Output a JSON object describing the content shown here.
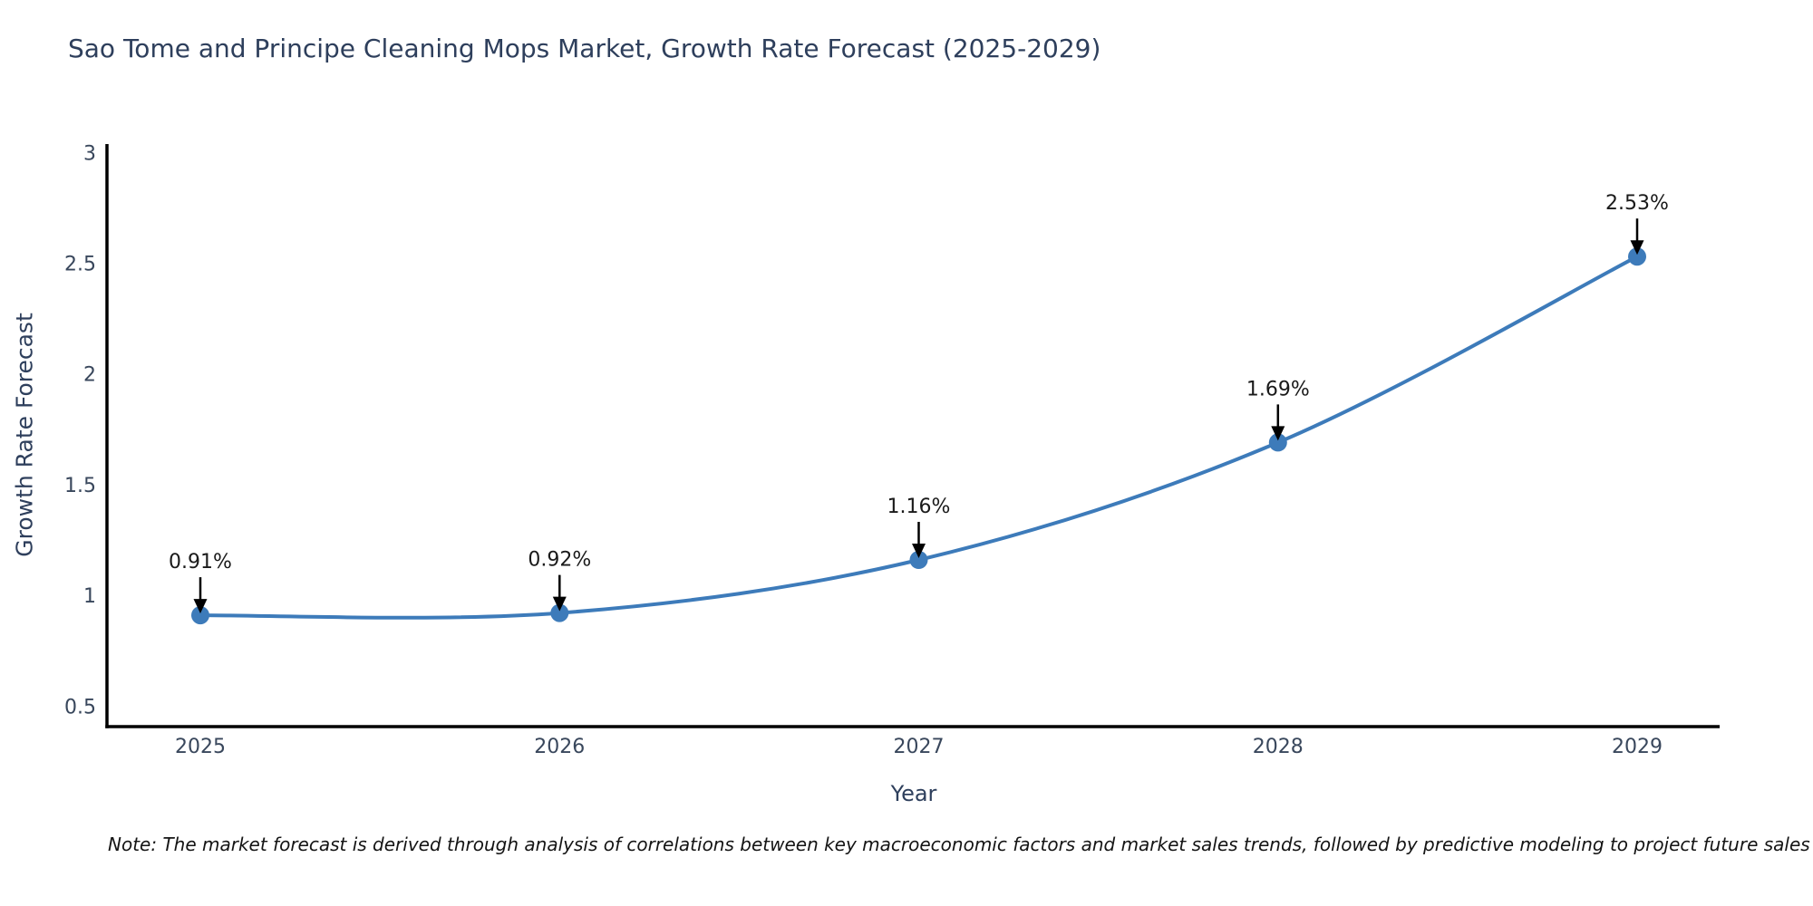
{
  "chart_data": {
    "type": "line",
    "title": "Sao Tome and Principe Cleaning Mops Market, Growth Rate Forecast (2025-2029)",
    "xlabel": "Year",
    "ylabel": "Growth Rate Forecast",
    "x": [
      "2025",
      "2026",
      "2027",
      "2028",
      "2029"
    ],
    "series": [
      {
        "name": "Growth Rate Forecast",
        "values": [
          0.91,
          0.92,
          1.16,
          1.69,
          2.53
        ]
      }
    ],
    "data_labels": [
      "0.91%",
      "0.92%",
      "1.16%",
      "1.69%",
      "2.53%"
    ],
    "ylim": [
      0.407,
      3.038
    ],
    "yticks": [
      "0.5",
      "1",
      "1.5",
      "2",
      "2.5",
      "3"
    ],
    "ytick_values": [
      0.5,
      1,
      1.5,
      2,
      2.5,
      3
    ],
    "grid": false,
    "legend": "none",
    "line_color": "#3d7bba",
    "marker_color": "#3d7bba",
    "axis_color": "#000000",
    "annotation_color": "#000000",
    "text_color": "#2e3f5c"
  },
  "note": "Note: The market forecast is derived through analysis of correlations between key macroeconomic factors and market sales trends, followed by predictive modeling to project future sales"
}
